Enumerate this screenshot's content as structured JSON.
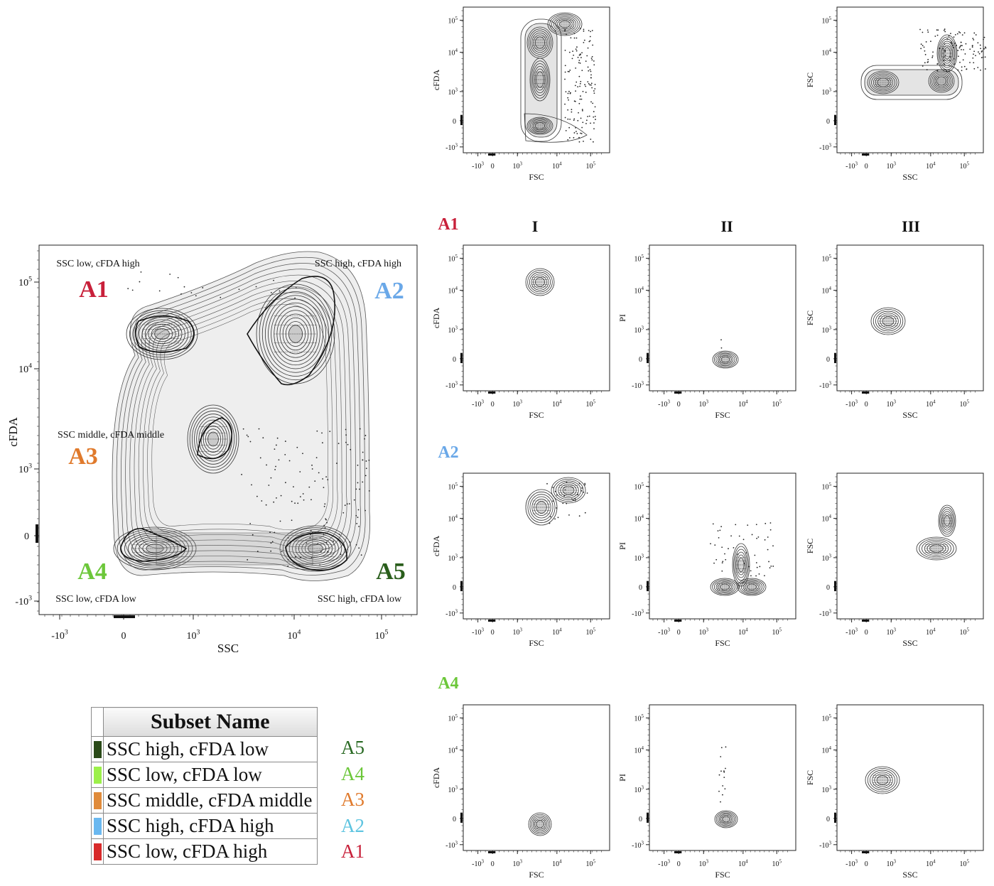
{
  "panels": {
    "top_fsc_cfda": {
      "xlabel": "FSC",
      "ylabel": "cFDA"
    },
    "top_ssc_fsc": {
      "xlabel": "SSC",
      "ylabel": "FSC"
    }
  },
  "columns": [
    "I",
    "II",
    "III"
  ],
  "rows": [
    {
      "label": "A1",
      "color": "#c8203a"
    },
    {
      "label": "A2",
      "color": "#6aa8e8"
    },
    {
      "label": "A4",
      "color": "#6cc73a"
    }
  ],
  "grid_axes": [
    {
      "xlabel": "FSC",
      "ylabel": "cFDA"
    },
    {
      "xlabel": "FSC",
      "ylabel": "PI"
    },
    {
      "xlabel": "SSC",
      "ylabel": "FSC"
    }
  ],
  "main": {
    "xlabel": "SSC",
    "ylabel": "cFDA",
    "regions": [
      {
        "tag": "A1",
        "color": "#c8203a",
        "desc": "SSC low, cFDA high"
      },
      {
        "tag": "A2",
        "color": "#6aa8e8",
        "desc": "SSC high, cFDA high"
      },
      {
        "tag": "A3",
        "color": "#e07a2c",
        "desc": "SSC middle, cFDA middle"
      },
      {
        "tag": "A4",
        "color": "#6cc73a",
        "desc": "SSC low, cFDA low"
      },
      {
        "tag": "A5",
        "color": "#2a5e1c",
        "desc": "SSC high, cFDA low"
      }
    ]
  },
  "legend": {
    "header": "Subset Name",
    "rows": [
      {
        "name": "SSC high, cFDA low",
        "tag": "A5",
        "swatch": "#2a4a18",
        "tag_color": "#2a6a24"
      },
      {
        "name": "SSC low, cFDA low",
        "tag": "A4",
        "swatch": "#9cf04a",
        "tag_color": "#6cc73a"
      },
      {
        "name": "SSC middle, cFDA middle",
        "tag": "A3",
        "swatch": "#e08b3a",
        "tag_color": "#e07a2c"
      },
      {
        "name": "SSC high, cFDA high",
        "tag": "A2",
        "swatch": "#6ab8f0",
        "tag_color": "#5ec4e0"
      },
      {
        "name": "SSC low, cFDA high",
        "tag": "A1",
        "swatch": "#d82a2a",
        "tag_color": "#c8203a"
      }
    ]
  },
  "chart_data": {
    "type": "scatter",
    "subtype": "contour density plots (flow cytometry, biexponential axes)",
    "xlabel": "SSC",
    "ylabel": "cFDA",
    "x_ticks": [
      "-10^3",
      "0",
      "10^3",
      "10^4",
      "10^5"
    ],
    "y_ticks": [
      "-10^3",
      "0",
      "10^3",
      "10^4",
      "10^5"
    ],
    "series": [
      {
        "name": "SSC low, cFDA high",
        "x": 350,
        "y": 22000
      },
      {
        "name": "SSC high, cFDA high",
        "x": 12000,
        "y": 20000
      },
      {
        "name": "SSC middle, cFDA middle",
        "x": 1800,
        "y": 2000
      },
      {
        "name": "SSC low, cFDA low",
        "x": 200,
        "y": -250
      },
      {
        "name": "SSC high, cFDA low",
        "x": 18000,
        "y": -250
      }
    ],
    "subpanels": [
      {
        "panel": "top_fsc_cfda",
        "x": "FSC",
        "y": "cFDA",
        "peaks": [
          {
            "x": 2000,
            "y": 20000
          },
          {
            "x": 2000,
            "y": 2000
          },
          {
            "x": 2000,
            "y": -200
          },
          {
            "x": 9000,
            "y": 60000
          }
        ]
      },
      {
        "panel": "top_ssc_fsc",
        "x": "SSC",
        "y": "FSC",
        "peaks": [
          {
            "x": 200,
            "y": 2000
          },
          {
            "x": 1500,
            "y": 2000
          },
          {
            "x": 12000,
            "y": 2000
          },
          {
            "x": 18000,
            "y": 9000
          }
        ]
      },
      {
        "panel": "A1-I",
        "x": "FSC",
        "y": "cFDA",
        "peaks": [
          {
            "x": 2000,
            "y": 20000
          }
        ]
      },
      {
        "panel": "A1-II",
        "x": "FSC",
        "y": "PI",
        "peaks": [
          {
            "x": 2000,
            "y": 0
          }
        ]
      },
      {
        "panel": "A1-III",
        "x": "SSC",
        "y": "FSC",
        "peaks": [
          {
            "x": 400,
            "y": 2000
          }
        ]
      },
      {
        "panel": "A2-I",
        "x": "FSC",
        "y": "cFDA",
        "peaks": [
          {
            "x": 2000,
            "y": 25000
          },
          {
            "x": 8000,
            "y": 60000
          }
        ]
      },
      {
        "panel": "A2-II",
        "x": "FSC",
        "y": "PI",
        "peaks": [
          {
            "x": 2000,
            "y": 0
          },
          {
            "x": 9000,
            "y": 0
          }
        ]
      },
      {
        "panel": "A2-III",
        "x": "SSC",
        "y": "FSC",
        "peaks": [
          {
            "x": 10000,
            "y": 2000
          },
          {
            "x": 18000,
            "y": 9000
          }
        ]
      },
      {
        "panel": "A4-I",
        "x": "FSC",
        "y": "cFDA",
        "peaks": [
          {
            "x": 2000,
            "y": -200
          }
        ]
      },
      {
        "panel": "A4-II",
        "x": "FSC",
        "y": "PI",
        "peaks": [
          {
            "x": 2000,
            "y": 0
          }
        ]
      },
      {
        "panel": "A4-III",
        "x": "SSC",
        "y": "FSC",
        "peaks": [
          {
            "x": 250,
            "y": 2000
          }
        ]
      }
    ]
  }
}
